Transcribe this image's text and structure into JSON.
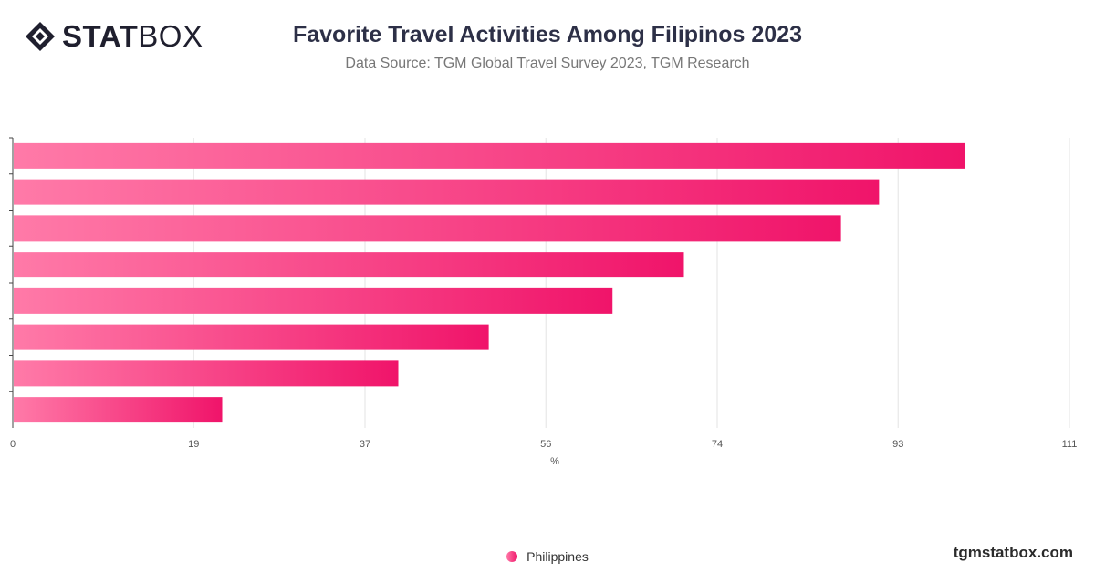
{
  "header": {
    "logo_text_bold": "STAT",
    "logo_text_light": "BOX",
    "title": "Favorite Travel Activities Among Filipinos 2023",
    "subtitle": "Data Source: TGM Global Travel Survey 2023, TGM Research"
  },
  "footer": {
    "site": "tgmstatbox.com"
  },
  "colors": {
    "bar_start": "#ff7aa8",
    "bar_end": "#f0146a",
    "grid": "#e3e3e3",
    "axis": "#444444"
  },
  "chart_data": {
    "type": "bar",
    "orientation": "horizontal",
    "categories": [
      "",
      "",
      "",
      "",
      "",
      "",
      "",
      ""
    ],
    "series": [
      {
        "name": "Philippines",
        "values": [
          100,
          91,
          87,
          70.5,
          63,
          50,
          40.5,
          22
        ]
      }
    ],
    "xlim": [
      0,
      111
    ],
    "xticks": [
      0,
      19,
      37,
      56,
      74,
      93,
      111
    ],
    "xlabel": "%",
    "ylabel": "",
    "grid": true,
    "legend": "bottom-center"
  }
}
